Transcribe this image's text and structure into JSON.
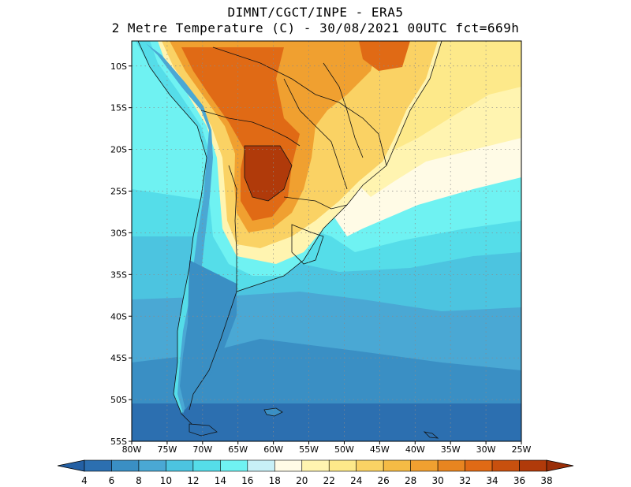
{
  "title": {
    "line1": "DIMNT/CGCT/INPE -  ERA5",
    "line2": "2 Metre Temperature (C) -  30/08/2021 00UTC fct=669h"
  },
  "map": {
    "lat_labels": [
      "10S",
      "15S",
      "20S",
      "25S",
      "30S",
      "35S",
      "40S",
      "45S",
      "50S",
      "55S"
    ],
    "lon_labels": [
      "80W",
      "75W",
      "70W",
      "65W",
      "60W",
      "55W",
      "50W",
      "45W",
      "40W",
      "35W",
      "30W",
      "25W"
    ],
    "lat_range": [
      -55,
      -7
    ],
    "lon_range": [
      -80,
      -25
    ]
  },
  "colorbar": {
    "values": [
      "4",
      "6",
      "8",
      "10",
      "12",
      "14",
      "16",
      "18",
      "20",
      "22",
      "24",
      "26",
      "28",
      "30",
      "32",
      "34",
      "36",
      "38"
    ],
    "colors": [
      "#2c6fb0",
      "#3a8fc4",
      "#4aa8d4",
      "#4cc4e0",
      "#55dde9",
      "#6ff2f2",
      "#c8f0f7",
      "#fffbe6",
      "#fff4b0",
      "#fde98a",
      "#fad264",
      "#f5bb45",
      "#f0a030",
      "#e88520",
      "#e06a15",
      "#c8500e",
      "#b03a0a"
    ],
    "under_color": "#2460a4",
    "over_color": "#9a2e08"
  }
}
